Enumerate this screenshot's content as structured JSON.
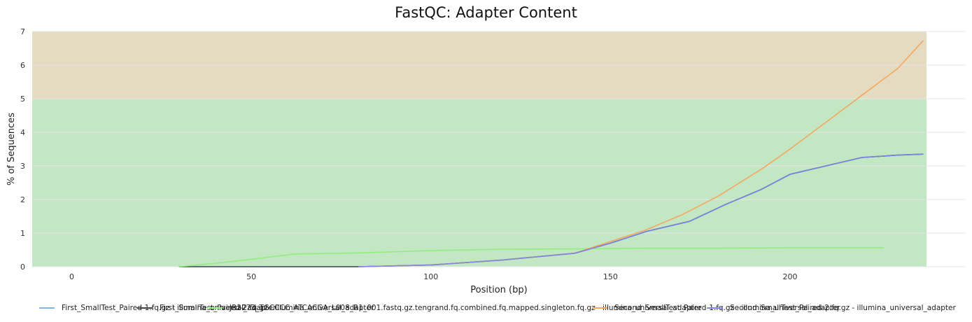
{
  "chart_data": {
    "type": "line",
    "title": "FastQC: Adapter Content",
    "xlabel": "Position (bp)",
    "ylabel": "% of Sequences",
    "xlim": [
      -11,
      238
    ],
    "ylim": [
      0,
      7
    ],
    "xticks": [
      0,
      50,
      100,
      150,
      200
    ],
    "yticks": [
      0,
      1,
      2,
      3,
      4,
      5,
      6,
      7
    ],
    "bands": [
      {
        "from": 0,
        "to": 5,
        "color": "#c3e6c3"
      },
      {
        "from": 5,
        "to": 7,
        "color": "#e5dbc1"
      }
    ],
    "grid": true,
    "legend_position": "bottom",
    "series": [
      {
        "name": "First_SmallTest_Paired-1.fq.gz - illumina_universal_adapter",
        "color": "#7cb5ec",
        "x": [
          30,
          40,
          50,
          60,
          80,
          100,
          120,
          140,
          150,
          160,
          172,
          182,
          192,
          200,
          210,
          220,
          230,
          237
        ],
        "y": [
          0,
          0,
          0,
          0,
          0,
          0.05,
          0.2,
          0.4,
          0.7,
          1.05,
          1.35,
          1.85,
          2.3,
          2.75,
          3.0,
          3.25,
          3.32,
          3.35
        ]
      },
      {
        "name": "First_SmallTest_Paired-2.fq.gz - illumina_universal_adapter",
        "color": "#434348",
        "x": [
          30,
          40,
          50,
          60,
          80,
          100,
          120,
          140,
          150,
          160,
          172,
          182,
          192,
          200,
          210,
          220,
          230,
          237
        ],
        "y": [
          0,
          0,
          0,
          0,
          0,
          0.05,
          0.2,
          0.4,
          0.7,
          1.05,
          1.35,
          1.85,
          2.3,
          2.75,
          3.0,
          3.25,
          3.32,
          3.35
        ]
      },
      {
        "name": "JR2273_TGCCCC_ATCACGA_L008_R1_001.fastq.gz.tengrand.fq.combined.fq.mapped.singleton.fq.gz - illumina_universal_adapter",
        "color": "#90ed7d",
        "x": [
          30,
          40,
          50,
          62,
          80,
          100,
          120,
          140,
          160,
          180,
          200,
          226
        ],
        "y": [
          0,
          0.1,
          0.22,
          0.38,
          0.41,
          0.48,
          0.52,
          0.53,
          0.55,
          0.55,
          0.56,
          0.56
        ]
      },
      {
        "name": "Second_SmallTest_Paired-1.fq.gz - illumina_universal_adapter",
        "color": "#f7a35c",
        "x": [
          80,
          100,
          120,
          140,
          150,
          160,
          170,
          180,
          192,
          200,
          210,
          220,
          230,
          237
        ],
        "y": [
          0,
          0.05,
          0.2,
          0.4,
          0.75,
          1.1,
          1.55,
          2.1,
          2.9,
          3.5,
          4.3,
          5.1,
          5.9,
          6.72
        ]
      },
      {
        "name": "Second_SmallTest_Paired-2.fq.gz - illumina_universal_adapter",
        "color": "#8085e9",
        "x": [
          80,
          100,
          120,
          140,
          150,
          160,
          172,
          182,
          192,
          200,
          210,
          220,
          230,
          237
        ],
        "y": [
          0,
          0.05,
          0.2,
          0.4,
          0.7,
          1.05,
          1.35,
          1.85,
          2.3,
          2.75,
          3.0,
          3.25,
          3.32,
          3.35
        ]
      }
    ]
  }
}
